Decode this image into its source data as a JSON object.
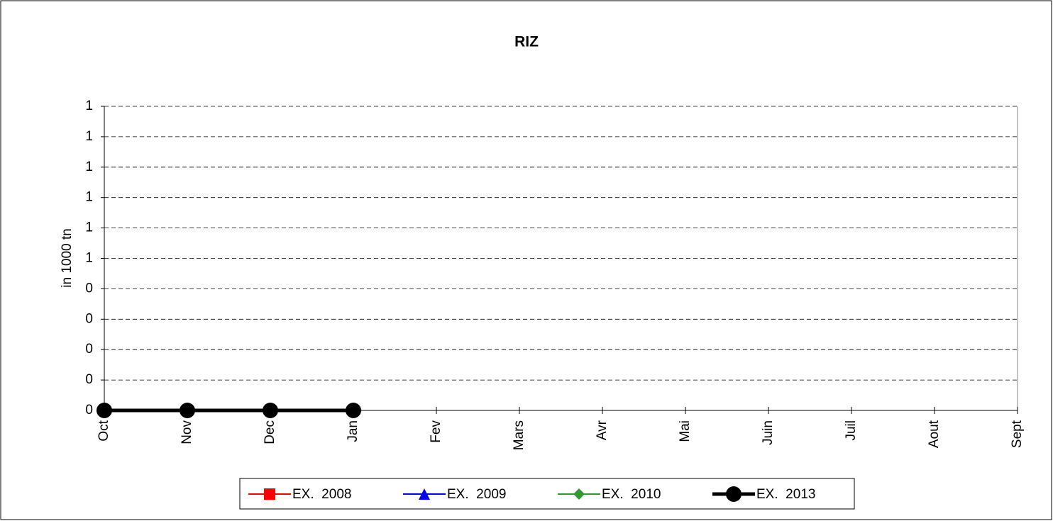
{
  "chart_data": {
    "type": "line",
    "title": "RIZ",
    "y_label": "in 1000 tn",
    "categories": [
      "Oct",
      "Nov",
      "Dec",
      "Jan",
      "Fev",
      "Mars",
      "Avr",
      "Mai",
      "Juin",
      "Juil",
      "Aout",
      "Sept"
    ],
    "series": [
      {
        "name": "EX.  2008",
        "color": "#ff0000",
        "marker": "square",
        "values": [
          null,
          null,
          null,
          null,
          null,
          null,
          null,
          null,
          null,
          null,
          null,
          null
        ]
      },
      {
        "name": "EX.  2009",
        "color": "#0000ff",
        "marker": "triangle",
        "values": [
          null,
          null,
          null,
          null,
          null,
          null,
          null,
          null,
          null,
          null,
          null,
          null
        ]
      },
      {
        "name": "EX.  2010",
        "color": "#339933",
        "marker": "diamond",
        "values": [
          null,
          null,
          null,
          null,
          null,
          null,
          null,
          null,
          null,
          null,
          null,
          null
        ]
      },
      {
        "name": "EX.  2013",
        "color": "#000000",
        "marker": "circle",
        "values": [
          0,
          0,
          0,
          0,
          null,
          null,
          null,
          null,
          null,
          null,
          null,
          null
        ]
      }
    ],
    "ylim": [
      0,
      1
    ],
    "yticks": [
      0,
      {
        "value": 0.1,
        "label": "0"
      },
      {
        "value": 0.2,
        "label": "0"
      },
      {
        "value": 0.3,
        "label": "0"
      },
      {
        "value": 0.4,
        "label": "0"
      },
      {
        "value": 0.5,
        "label": "1"
      },
      {
        "value": 0.6,
        "label": "1"
      },
      {
        "value": 0.7,
        "label": "1"
      },
      {
        "value": 0.8,
        "label": "1"
      },
      {
        "value": 0.9,
        "label": "1"
      },
      1
    ],
    "grid": true,
    "legend": "bottom"
  }
}
